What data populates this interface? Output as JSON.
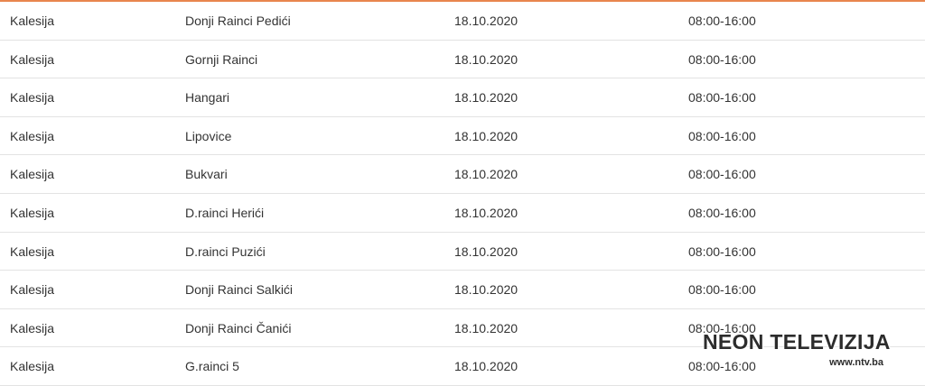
{
  "table": {
    "rows": [
      [
        "Kalesija",
        "Donji Rainci Pedići",
        "18.10.2020",
        "08:00-16:00"
      ],
      [
        "Kalesija",
        "Gornji Rainci",
        "18.10.2020",
        "08:00-16:00"
      ],
      [
        "Kalesija",
        "Hangari",
        "18.10.2020",
        "08:00-16:00"
      ],
      [
        "Kalesija",
        "Lipovice",
        "18.10.2020",
        "08:00-16:00"
      ],
      [
        "Kalesija",
        "Bukvari",
        "18.10.2020",
        "08:00-16:00"
      ],
      [
        "Kalesija",
        "D.rainci Herići",
        "18.10.2020",
        "08:00-16:00"
      ],
      [
        "Kalesija",
        "D.rainci Puzići",
        "18.10.2020",
        "08:00-16:00"
      ],
      [
        "Kalesija",
        "Donji Rainci Salkići",
        "18.10.2020",
        "08:00-16:00"
      ],
      [
        "Kalesija",
        "Donji Rainci Čanići",
        "18.10.2020",
        "08:00-16:00"
      ],
      [
        "Kalesija",
        "G.rainci 5",
        "18.10.2020",
        "08:00-16:00"
      ]
    ]
  },
  "watermark": {
    "title": "NEON TELEVIZIJA",
    "url": "www.ntv.ba"
  }
}
